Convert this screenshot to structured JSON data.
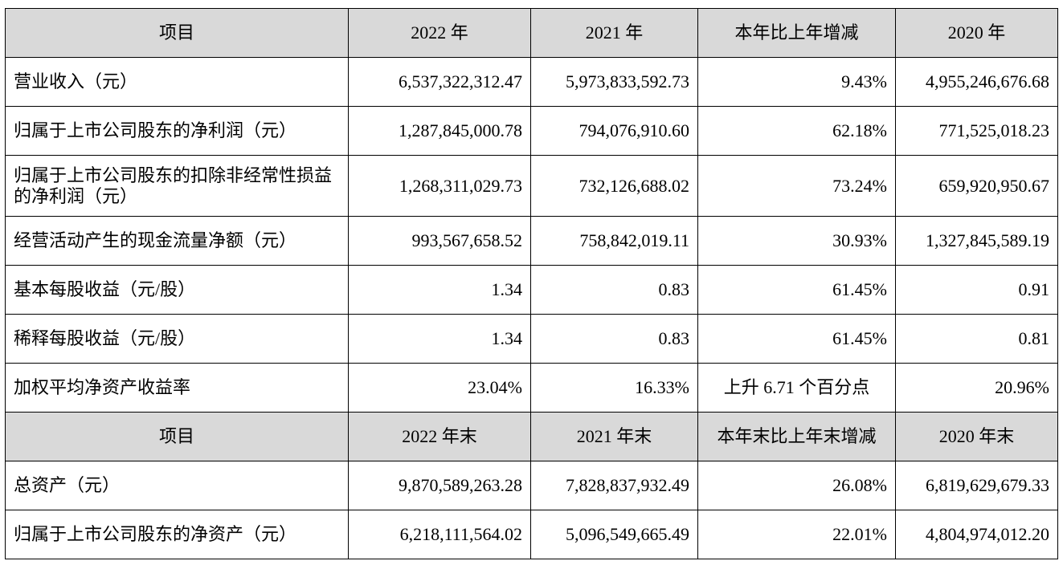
{
  "header1": [
    "项目",
    "2022 年",
    "2021 年",
    "本年比上年增减",
    "2020 年"
  ],
  "rows1": [
    [
      "营业收入（元）",
      "6,537,322,312.47",
      "5,973,833,592.73",
      "9.43%",
      "4,955,246,676.68"
    ],
    [
      "归属于上市公司股东的净利润（元）",
      "1,287,845,000.78",
      "794,076,910.60",
      "62.18%",
      "771,525,018.23"
    ],
    [
      "归属于上市公司股东的扣除非经常性损益的净利润（元）",
      "1,268,311,029.73",
      "732,126,688.02",
      "73.24%",
      "659,920,950.67"
    ],
    [
      "经营活动产生的现金流量净额（元）",
      "993,567,658.52",
      "758,842,019.11",
      "30.93%",
      "1,327,845,589.19"
    ],
    [
      "基本每股收益（元/股）",
      "1.34",
      "0.83",
      "61.45%",
      "0.91"
    ],
    [
      "稀释每股收益（元/股）",
      "1.34",
      "0.83",
      "61.45%",
      "0.81"
    ],
    [
      "加权平均净资产收益率",
      "23.04%",
      "16.33%",
      "上升 6.71 个百分点",
      "20.96%"
    ]
  ],
  "header2": [
    "项目",
    "2022 年末",
    "2021 年末",
    "本年末比上年末增减",
    "2020 年末"
  ],
  "rows2": [
    [
      "总资产（元）",
      "9,870,589,263.28",
      "7,828,837,932.49",
      "26.08%",
      "6,819,629,679.33"
    ],
    [
      "归属于上市公司股东的净资产（元）",
      "6,218,111,564.02",
      "5,096,549,665.49",
      "22.01%",
      "4,804,974,012.20"
    ]
  ]
}
